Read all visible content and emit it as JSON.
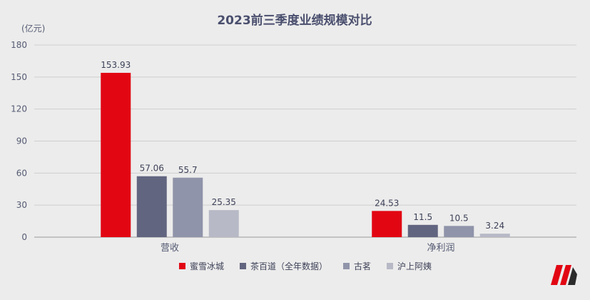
{
  "chart_data": {
    "type": "bar",
    "title": "2023前三季度业绩规模对比",
    "unit_label": "(亿元)",
    "categories": [
      "营收",
      "净利润"
    ],
    "series": [
      {
        "name": "蜜雪冰城",
        "color": "#e20613",
        "values": [
          153.93,
          24.53
        ],
        "labels": [
          "153.93",
          "24.53"
        ]
      },
      {
        "name": "茶百道（全年数据）",
        "color": "#62657f",
        "values": [
          57.06,
          11.5
        ],
        "labels": [
          "57.06",
          "11.5"
        ]
      },
      {
        "name": "古茗",
        "color": "#9094aa",
        "values": [
          55.7,
          10.5
        ],
        "labels": [
          "55.7",
          "10.5"
        ]
      },
      {
        "name": "沪上阿姨",
        "color": "#b7b9c6",
        "values": [
          25.35,
          3.24
        ],
        "labels": [
          "25.35",
          "3.24"
        ]
      }
    ],
    "ylim": [
      0,
      180
    ],
    "yticks": [
      0,
      30,
      60,
      90,
      120,
      150,
      180
    ],
    "grid": true,
    "legend_position": "bottom"
  },
  "logo": {
    "icon": "brand-logo-m",
    "colors": [
      "#e20613",
      "#2b2b2b"
    ]
  }
}
